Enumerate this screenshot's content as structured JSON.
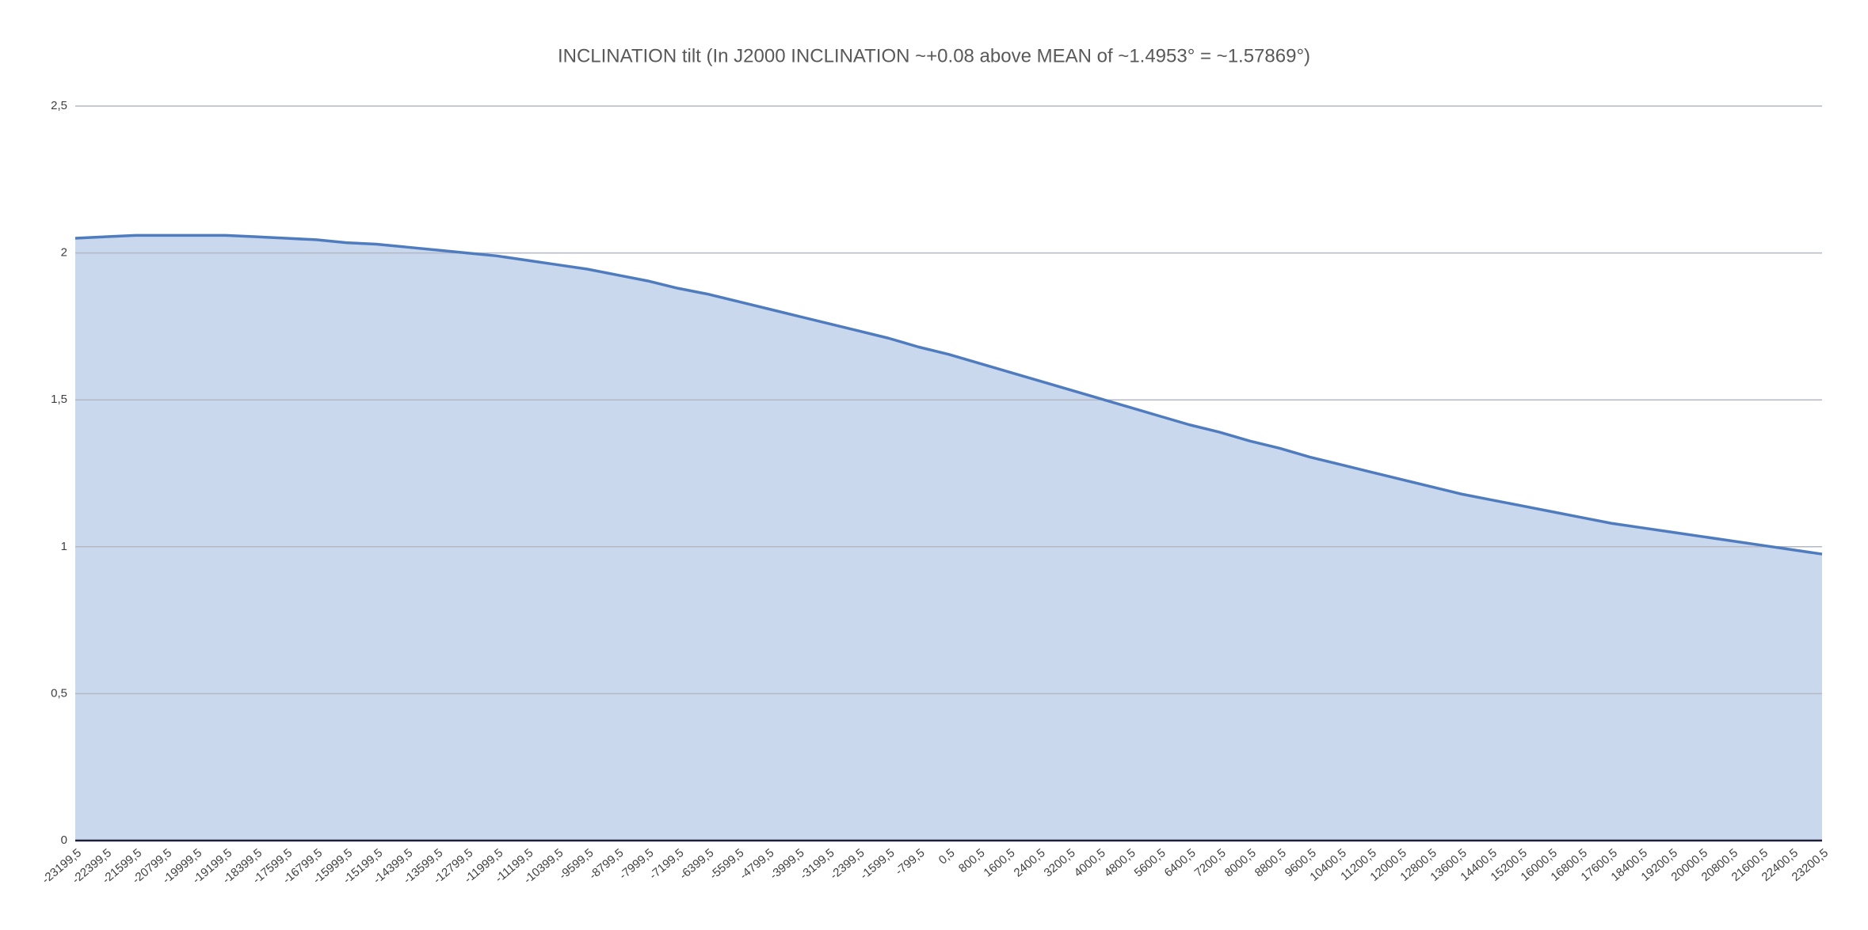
{
  "chart_data": {
    "type": "area",
    "title": "INCLINATION tilt (In J2000 INCLINATION ~+0.08 above MEAN of ~1.4953° = ~1.57869°)",
    "categories": [
      "-23199,5",
      "-22399,5",
      "-21599,5",
      "-20799,5",
      "-19999,5",
      "-19199,5",
      "-18399,5",
      "-17599,5",
      "-16799,5",
      "-15999,5",
      "-15199,5",
      "-14399,5",
      "-13599,5",
      "-12799,5",
      "-11999,5",
      "-11199,5",
      "-10399,5",
      "-9599,5",
      "-8799,5",
      "-7999,5",
      "-7199,5",
      "-6399,5",
      "-5599,5",
      "-4799,5",
      "-3999,5",
      "-3199,5",
      "-2399,5",
      "-1599,5",
      "-799,5",
      "0,5",
      "800,5",
      "1600,5",
      "2400,5",
      "3200,5",
      "4000,5",
      "4800,5",
      "5600,5",
      "6400,5",
      "7200,5",
      "8000,5",
      "8800,5",
      "9600,5",
      "10400,5",
      "11200,5",
      "12000,5",
      "12800,5",
      "13600,5",
      "14400,5",
      "15200,5",
      "16000,5",
      "16800,5",
      "17600,5",
      "18400,5",
      "19200,5",
      "20000,5",
      "20800,5",
      "21600,5",
      "22400,5",
      "23200,5"
    ],
    "values": [
      2.05,
      2.055,
      2.06,
      2.06,
      2.06,
      2.06,
      2.055,
      2.05,
      2.045,
      2.035,
      2.03,
      2.02,
      2.01,
      2.0,
      1.99,
      1.975,
      1.96,
      1.945,
      1.925,
      1.905,
      1.88,
      1.86,
      1.835,
      1.81,
      1.785,
      1.76,
      1.735,
      1.71,
      1.68,
      1.655,
      1.625,
      1.595,
      1.565,
      1.535,
      1.505,
      1.475,
      1.445,
      1.415,
      1.39,
      1.36,
      1.335,
      1.305,
      1.28,
      1.255,
      1.23,
      1.205,
      1.18,
      1.16,
      1.14,
      1.12,
      1.1,
      1.08,
      1.065,
      1.05,
      1.035,
      1.02,
      1.005,
      0.99,
      0.975
    ],
    "color": "#4f7cbf",
    "fill_color": "#c9d8ec",
    "ylim": [
      0,
      2.5
    ],
    "yticks": [
      0,
      {
        "value": 0.5,
        "label": "0,5"
      },
      1,
      {
        "value": 1.5,
        "label": "1,5"
      },
      2,
      {
        "value": 2.5,
        "label": "2,5"
      }
    ],
    "grid": true
  }
}
